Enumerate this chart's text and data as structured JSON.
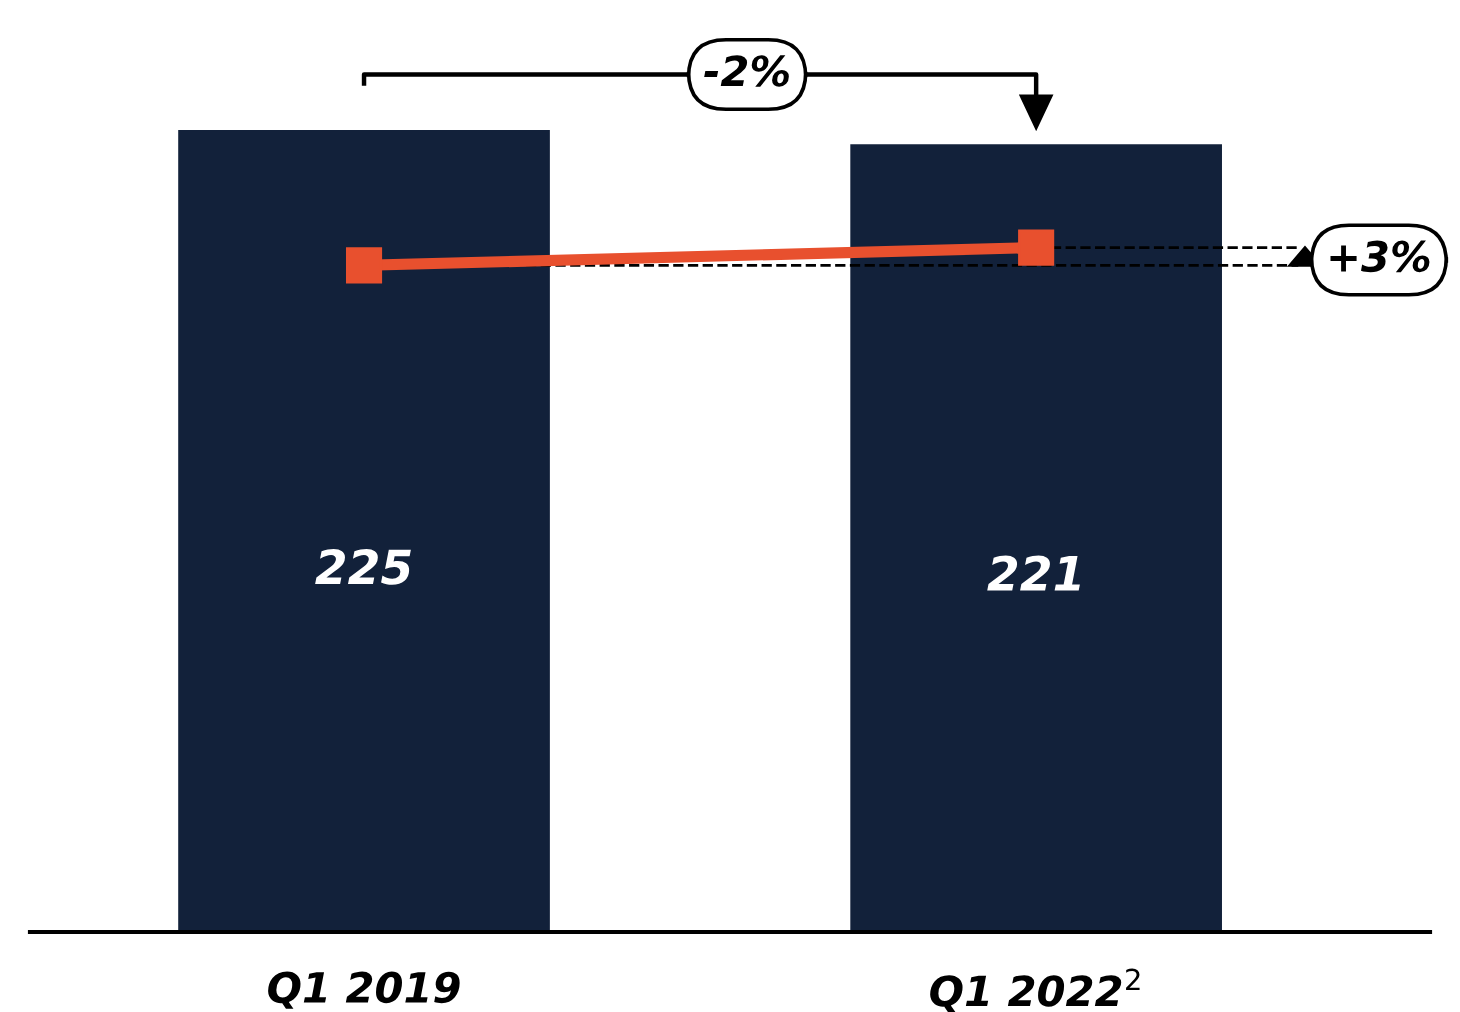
{
  "chart_data": {
    "type": "bar",
    "categories": [
      "Q1 2019",
      "Q1 2022$^{2}$"
    ],
    "series": [
      {
        "color": "#12213a",
        "values": [
          225,
          221
        ],
        "value_labels": [
          "225",
          "221"
        ]
      },
      {
        "type": "line",
        "color": "#e8502e",
        "values": [
          187,
          192
        ],
        "marker": "square"
      }
    ],
    "tick_labels": "x",
    "ref_lines": [
      {
        "axis": "y",
        "value": 187,
        "label": null,
        "color": "#000000",
        "line_style": "dashed"
      },
      {
        "axis": "y",
        "value": 192,
        "label": null,
        "color": "#000000",
        "line_style": "dashed"
      }
    ],
    "annotations": [
      "-2%",
      "+3%"
    ]
  }
}
